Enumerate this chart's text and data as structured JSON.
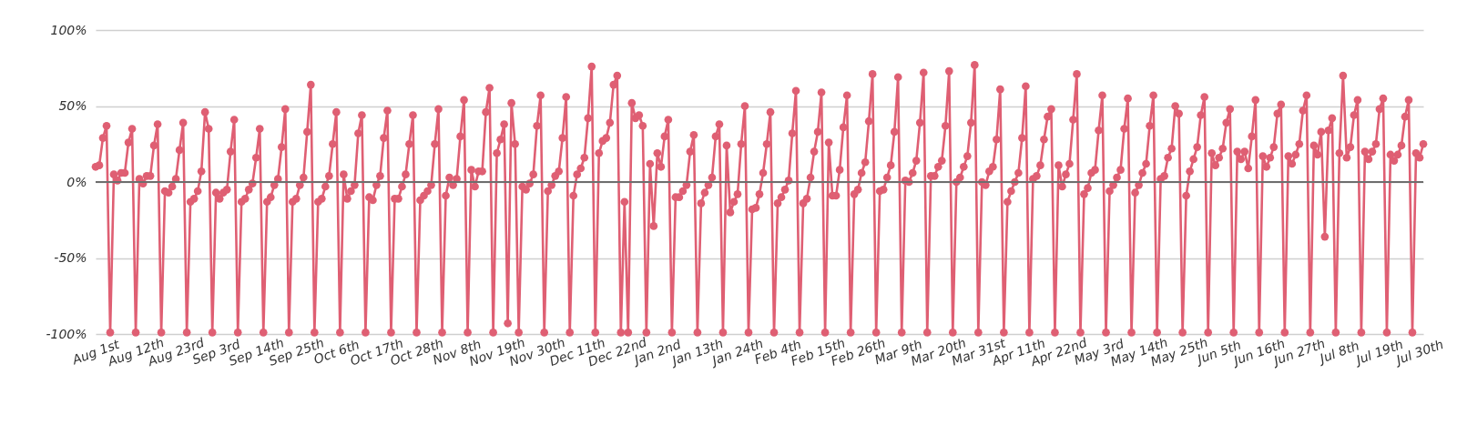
{
  "chart_data": {
    "type": "line",
    "categories": [
      "Aug 1st",
      null,
      null,
      null,
      null,
      null,
      null,
      null,
      null,
      null,
      null,
      "Aug 12th",
      null,
      null,
      null,
      null,
      null,
      null,
      null,
      null,
      null,
      null,
      "Aug 23rd",
      null,
      null,
      null,
      null,
      null,
      null,
      null,
      null,
      null,
      null,
      "Sep 3rd",
      null,
      null,
      null,
      null,
      null,
      null,
      null,
      null,
      null,
      null,
      "Sep 14th",
      null,
      null,
      null,
      null,
      null,
      null,
      null,
      null,
      null,
      null,
      "Sep 25th",
      null,
      null,
      null,
      null,
      null,
      null,
      null,
      null,
      null,
      null,
      "Oct 6th",
      null,
      null,
      null,
      null,
      null,
      null,
      null,
      null,
      null,
      null,
      "Oct 17th",
      null,
      null,
      null,
      null,
      null,
      null,
      null,
      null,
      null,
      null,
      "Oct 28th",
      null,
      null,
      null,
      null,
      null,
      null,
      null,
      null,
      null,
      null,
      "Nov 8th",
      null,
      null,
      null,
      null,
      null,
      null,
      null,
      null,
      null,
      null,
      "Nov 19th",
      null,
      null,
      null,
      null,
      null,
      null,
      null,
      null,
      null,
      null,
      "Nov 30th",
      null,
      null,
      null,
      null,
      null,
      null,
      null,
      null,
      null,
      null,
      "Dec 11th",
      null,
      null,
      null,
      null,
      null,
      null,
      null,
      null,
      null,
      null,
      "Dec 22nd",
      null,
      null,
      null,
      null,
      null,
      null,
      null,
      null,
      null,
      null,
      "Jan 2nd",
      null,
      null,
      null,
      null,
      null,
      null,
      null,
      null,
      null,
      null,
      "Jan 13th",
      null,
      null,
      null,
      null,
      null,
      null,
      null,
      null,
      null,
      null,
      "Jan 24th",
      null,
      null,
      null,
      null,
      null,
      null,
      null,
      null,
      null,
      null,
      "Feb 4th",
      null,
      null,
      null,
      null,
      null,
      null,
      null,
      null,
      null,
      null,
      "Feb 15th",
      null,
      null,
      null,
      null,
      null,
      null,
      null,
      null,
      null,
      null,
      "Feb 26th",
      null,
      null,
      null,
      null,
      null,
      null,
      null,
      null,
      null,
      null,
      "Mar 9th",
      null,
      null,
      null,
      null,
      null,
      null,
      null,
      null,
      null,
      null,
      "Mar 20th",
      null,
      null,
      null,
      null,
      null,
      null,
      null,
      null,
      null,
      null,
      "Mar 31st",
      null,
      null,
      null,
      null,
      null,
      null,
      null,
      null,
      null,
      null,
      "Apr 11th",
      null,
      null,
      null,
      null,
      null,
      null,
      null,
      null,
      null,
      null,
      "Apr 22nd",
      null,
      null,
      null,
      null,
      null,
      null,
      null,
      null,
      null,
      null,
      "May 3rd",
      null,
      null,
      null,
      null,
      null,
      null,
      null,
      null,
      null,
      null,
      "May 14th",
      null,
      null,
      null,
      null,
      null,
      null,
      null,
      null,
      null,
      null,
      "May 25th",
      null,
      null,
      null,
      null,
      null,
      null,
      null,
      null,
      null,
      null,
      "Jun 5th",
      null,
      null,
      null,
      null,
      null,
      null,
      null,
      null,
      null,
      null,
      "Jun 16th",
      null,
      null,
      null,
      null,
      null,
      null,
      null,
      null,
      null,
      null,
      "Jun 27th",
      null,
      null,
      null,
      null,
      null,
      null,
      null,
      null,
      null,
      null,
      "Jul 8th",
      null,
      null,
      null,
      null,
      null,
      null,
      null,
      null,
      null,
      null,
      "Jul 19th",
      null,
      null,
      null,
      null,
      null,
      null,
      null,
      null,
      null,
      null,
      "Jul 30th",
      null
    ],
    "series": [
      {
        "color": "#df5f73",
        "values": [
          10,
          11,
          29,
          37,
          -99,
          5,
          1,
          6,
          6,
          26,
          35,
          -99,
          2,
          -1,
          4,
          4,
          24,
          38,
          -99,
          -6,
          -7,
          -3,
          2,
          21,
          39,
          -99,
          -13,
          -11,
          -6,
          7,
          46,
          35,
          -99,
          -7,
          -11,
          -7,
          -5,
          20,
          41,
          -99,
          -13,
          -11,
          -5,
          -1,
          16,
          35,
          -99,
          -13,
          -10,
          -2,
          2,
          23,
          48,
          -99,
          -13,
          -11,
          -2,
          3,
          33,
          64,
          -99,
          -13,
          -11,
          -3,
          4,
          25,
          46,
          -99,
          5,
          -11,
          -6,
          -2,
          32,
          44,
          -99,
          -10,
          -12,
          -2,
          4,
          29,
          47,
          -99,
          -11,
          -11,
          -3,
          5,
          25,
          44,
          -99,
          -12,
          -9,
          -6,
          -2,
          25,
          48,
          -99,
          -9,
          3,
          -2,
          2,
          30,
          54,
          -99,
          8,
          -3,
          7,
          7,
          46,
          62,
          -99,
          19,
          28,
          38,
          -93,
          52,
          25,
          -99,
          -3,
          -5,
          -1,
          5,
          37,
          57,
          -99,
          -6,
          -2,
          4,
          7,
          29,
          56,
          -99,
          -9,
          5,
          9,
          16,
          42,
          76,
          -99,
          19,
          27,
          29,
          39,
          64,
          70,
          -99,
          -13,
          -99,
          52,
          42,
          44,
          37,
          -99,
          12,
          -29,
          19,
          10,
          30,
          41,
          -99,
          -10,
          -10,
          -6,
          -2,
          20,
          31,
          -99,
          -14,
          -7,
          -2,
          3,
          30,
          38,
          -99,
          24,
          -20,
          -13,
          -8,
          25,
          50,
          -99,
          -18,
          -17,
          -8,
          6,
          25,
          46,
          -99,
          -14,
          -10,
          -5,
          1,
          32,
          60,
          -99,
          -14,
          -11,
          3,
          20,
          33,
          59,
          -99,
          26,
          -9,
          -9,
          8,
          36,
          57,
          -99,
          -8,
          -5,
          6,
          13,
          40,
          71,
          -99,
          -6,
          -5,
          3,
          11,
          33,
          69,
          -99,
          1,
          0,
          6,
          14,
          39,
          72,
          -99,
          4,
          4,
          10,
          14,
          37,
          73,
          -99,
          0,
          3,
          10,
          17,
          39,
          77,
          -99,
          0,
          -2,
          7,
          10,
          28,
          61,
          -99,
          -13,
          -6,
          0,
          6,
          29,
          63,
          -99,
          2,
          4,
          11,
          28,
          43,
          48,
          -99,
          11,
          -3,
          5,
          12,
          41,
          71,
          -99,
          -8,
          -4,
          6,
          8,
          34,
          57,
          -99,
          -6,
          -2,
          3,
          8,
          35,
          55,
          -99,
          -7,
          -2,
          6,
          12,
          37,
          57,
          -99,
          2,
          4,
          16,
          22,
          50,
          45,
          -99,
          -9,
          7,
          15,
          23,
          44,
          56,
          -99,
          19,
          11,
          16,
          22,
          39,
          48,
          -99,
          20,
          15,
          20,
          9,
          30,
          54,
          -99,
          17,
          10,
          16,
          23,
          45,
          51,
          -99,
          17,
          12,
          18,
          25,
          47,
          57,
          -99,
          24,
          18,
          33,
          -36,
          34,
          42,
          -99,
          19,
          70,
          16,
          23,
          44,
          54,
          -99,
          20,
          15,
          20,
          25,
          48,
          55,
          -99,
          18,
          14,
          18,
          24,
          43,
          54,
          -99,
          19,
          16,
          25
        ]
      }
    ],
    "ylim": [
      -100,
      100
    ],
    "yticks": [
      {
        "value": -100,
        "label": "-100%"
      },
      {
        "value": -50,
        "label": "-50%"
      },
      {
        "value": 0,
        "label": "0%"
      },
      {
        "value": 50,
        "label": "50%"
      },
      {
        "value": 100,
        "label": "100%"
      }
    ],
    "grid": "y",
    "marker": "circle",
    "line_style": "solid",
    "ref_lines": [
      {
        "axis": "y",
        "value": 0,
        "color": "#6e6e6e"
      }
    ]
  }
}
